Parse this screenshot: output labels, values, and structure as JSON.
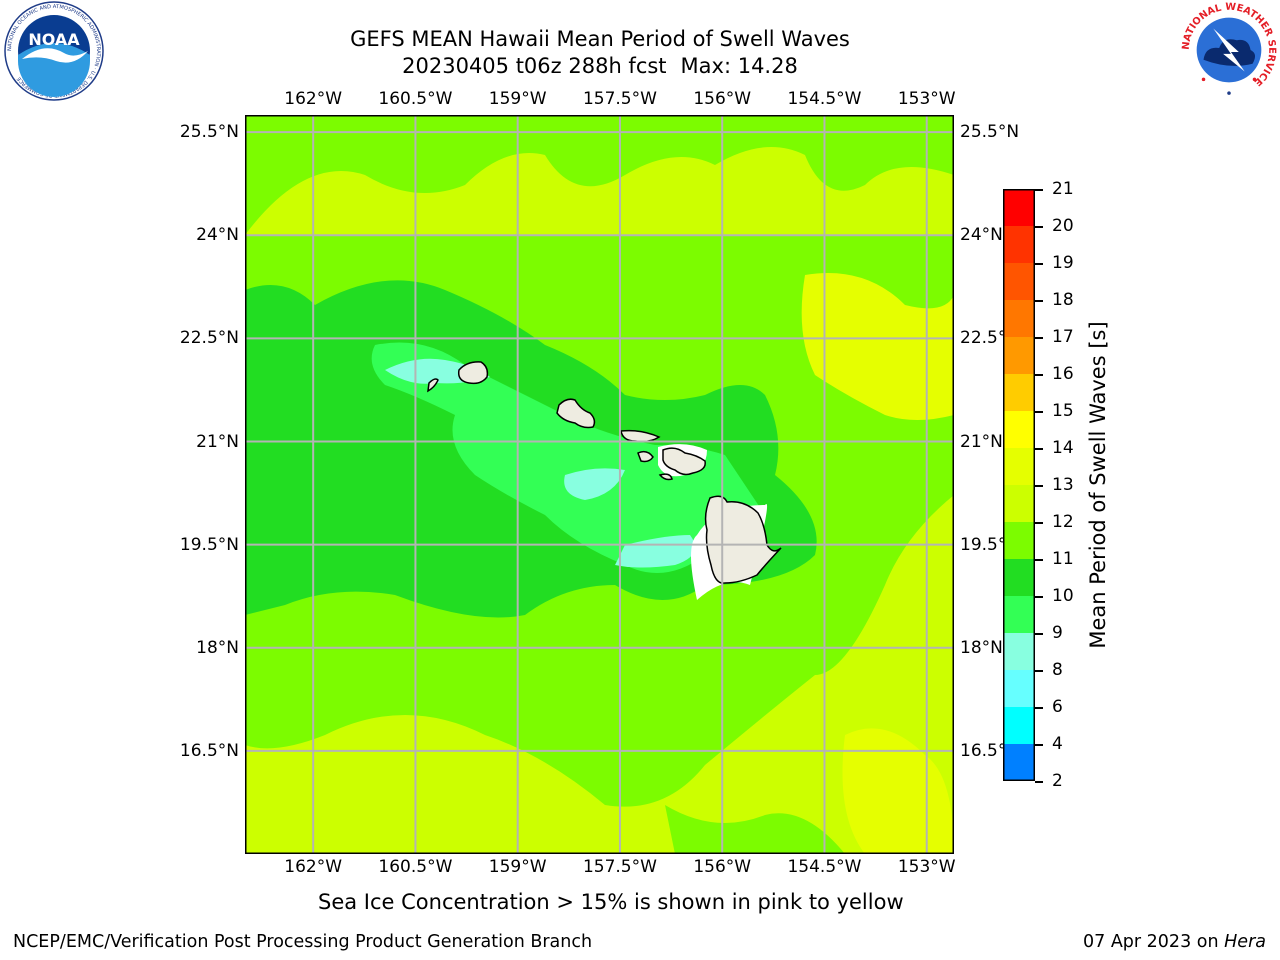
{
  "title": {
    "line1": "GEFS MEAN Hawaii Mean Period of Swell Waves",
    "run": "20230405 t06z 288h fcst",
    "max": "Max: 14.28"
  },
  "logos": {
    "left": {
      "icon": "noaa-logo",
      "text": "NOAA",
      "ring": "NATIONAL OCEANIC AND ATMOSPHERIC ADMINISTRATION · U.S. DEPARTMENT OF COMMERCE"
    },
    "right": {
      "icon": "nws-logo",
      "ring": "NATIONAL WEATHER SERVICE"
    }
  },
  "map": {
    "lon_labels_top": [
      "162°W",
      "160.5°W",
      "159°W",
      "157.5°W",
      "156°W",
      "154.5°W",
      "153°W"
    ],
    "lon_labels_bottom": [
      "162°W",
      "160.5°W",
      "159°W",
      "157.5°W",
      "156°W",
      "154.5°W",
      "153°W"
    ],
    "lat_labels_left": [
      "25.5°N",
      "24°N",
      "22.5°N",
      "21°N",
      "19.5°N",
      "18°N",
      "16.5°N"
    ],
    "lat_labels_right": [
      "25.5°N",
      "24°N",
      "22.5°N",
      "21°N",
      "19.5°N",
      "18°N",
      "16.5°N"
    ],
    "lon_values": [
      -162,
      -160.5,
      -159,
      -157.5,
      -156,
      -154.5,
      -153
    ],
    "lat_values": [
      25.5,
      24,
      22.5,
      21,
      19.5,
      18,
      16.5
    ],
    "lon_range": [
      -163,
      -152.6
    ],
    "lat_range": [
      15,
      25.75
    ],
    "grid": true,
    "land_color": "#eeece1",
    "gridline_color": "#b4b4b4",
    "field_colors": {
      "band_11_12": "#22dd22",
      "band_12_13": "#7cfc00",
      "band_13_14": "#ccff00",
      "band_14_15": "#e5ff00",
      "band_10_11": "#33ff55",
      "band_9_10": "#88ffe0"
    }
  },
  "colorbar": {
    "label": "Mean Period of Swell Waves [s]",
    "ticks": [
      "21",
      "20",
      "19",
      "18",
      "17",
      "16",
      "15",
      "14",
      "13",
      "12",
      "11",
      "10",
      "9",
      "8",
      "6",
      "4",
      "2"
    ],
    "colors": [
      "#ff0000",
      "#ff3300",
      "#ff5500",
      "#ff7700",
      "#ff9900",
      "#ffcc00",
      "#ffff00",
      "#e5ff00",
      "#ccff00",
      "#7cfc00",
      "#22dd22",
      "#33ff55",
      "#88ffe0",
      "#66ffff",
      "#00ffff",
      "#0080ff",
      "#0000ff"
    ]
  },
  "note": "Sea Ice Concentration > 15% is shown in pink to yellow",
  "footer": {
    "left": "NCEP/EMC/Verification Post Processing Product Generation Branch",
    "date": "07 Apr 2023 on ",
    "host": "Hera"
  }
}
